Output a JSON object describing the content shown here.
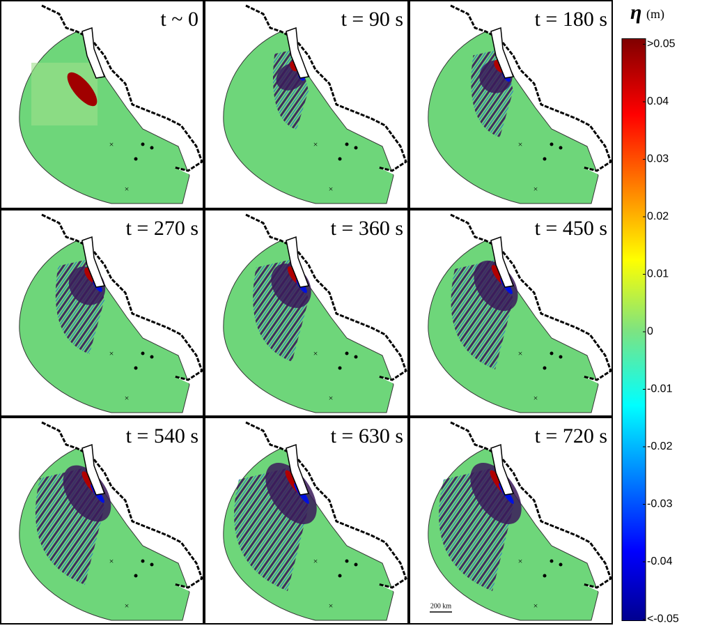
{
  "panels": [
    {
      "label": "t ~ 0"
    },
    {
      "label": "t = 90 s"
    },
    {
      "label": "t = 180 s"
    },
    {
      "label": "t = 270 s"
    },
    {
      "label": "t = 360 s"
    },
    {
      "label": "t = 450 s"
    },
    {
      "label": "t = 540 s"
    },
    {
      "label": "t = 630 s"
    },
    {
      "label": "t = 720 s"
    }
  ],
  "scale_bar": {
    "label": "200 km"
  },
  "colorbar": {
    "symbol": "η",
    "unit": "(m)",
    "lim": [
      -0.05,
      0.05
    ],
    "ticks": [
      {
        "value": 0.05,
        "label": ">0.05"
      },
      0.04,
      0.03,
      0.02,
      0.01,
      0,
      -0.01,
      -0.02,
      -0.03,
      -0.04,
      {
        "value": -0.05,
        "label": "<-0.05"
      }
    ]
  }
}
